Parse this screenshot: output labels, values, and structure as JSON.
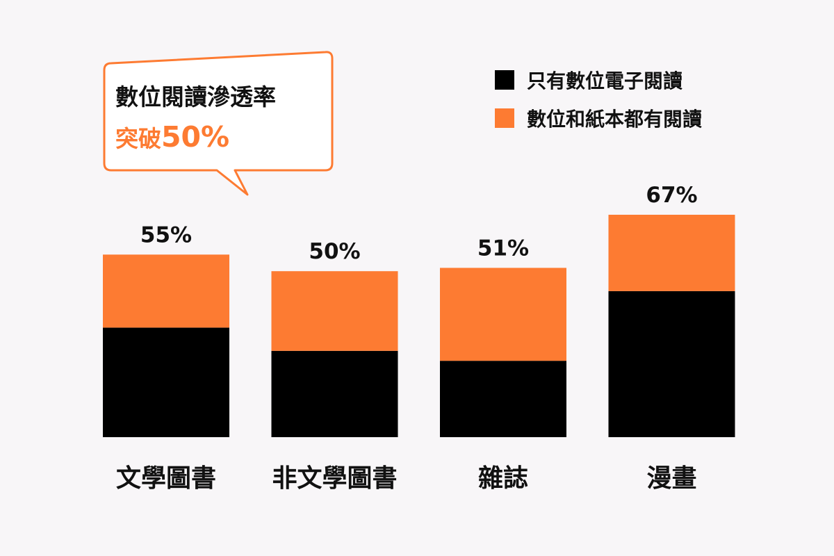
{
  "callout": {
    "line1": "數位閱讀滲透率",
    "line2_prefix": "突破",
    "line2_highlight": "50%"
  },
  "colors": {
    "digital_only": "#000000",
    "both": "#fd7b32",
    "background": "#f8f6f8",
    "text": "#111111"
  },
  "chart_data": {
    "type": "bar",
    "stacked": true,
    "categories": [
      "文學圖書",
      "非文學圖書",
      "雜誌",
      "漫畫"
    ],
    "series": [
      {
        "name": "只有數位電子閱讀",
        "color": "#000000",
        "values": [
          33,
          26,
          23,
          44
        ]
      },
      {
        "name": "數位和紙本都有閱讀",
        "color": "#fd7b32",
        "values": [
          22,
          24,
          28,
          23
        ]
      }
    ],
    "totals": [
      55,
      50,
      51,
      67
    ],
    "total_labels": [
      "55%",
      "50%",
      "51%",
      "67%"
    ],
    "ylim": [
      0,
      67
    ],
    "legend_position": "top-right",
    "grid": false,
    "title": "",
    "xlabel": "",
    "ylabel": ""
  }
}
